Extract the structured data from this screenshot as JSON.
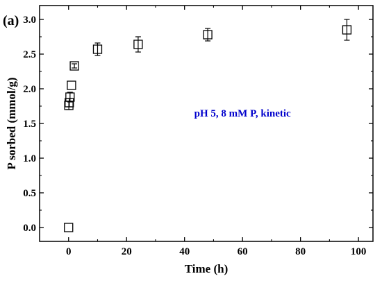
{
  "panel_label": "(a)",
  "chart_data": {
    "type": "scatter",
    "title": "",
    "xlabel": "Time (h)",
    "ylabel": "P sorbed (mmol/g)",
    "xlim": [
      -10,
      105
    ],
    "ylim": [
      -0.2,
      3.2
    ],
    "x_ticks": [
      0,
      20,
      40,
      60,
      80,
      100
    ],
    "y_ticks": [
      0.0,
      0.5,
      1.0,
      1.5,
      2.0,
      2.5,
      3.0
    ],
    "x_tick_labels": [
      "0",
      "20",
      "40",
      "60",
      "80",
      "100"
    ],
    "y_tick_labels": [
      "0.0",
      "0.5",
      "1.0",
      "1.5",
      "2.0",
      "2.5",
      "3.0"
    ],
    "grid": false,
    "legend": "none",
    "marker": "open-square",
    "series": [
      {
        "points": [
          {
            "x": 0,
            "y": 0.0,
            "err": 0.0
          },
          {
            "x": 0.083,
            "y": 1.76,
            "err": 0.06
          },
          {
            "x": 0.25,
            "y": 1.8,
            "err": 0.06
          },
          {
            "x": 0.5,
            "y": 1.88,
            "err": 0.07
          },
          {
            "x": 1,
            "y": 2.05,
            "err": 0.0
          },
          {
            "x": 2,
            "y": 2.33,
            "err": 0.03
          },
          {
            "x": 10,
            "y": 2.57,
            "err": 0.09
          },
          {
            "x": 24,
            "y": 2.64,
            "err": 0.11
          },
          {
            "x": 48,
            "y": 2.78,
            "err": 0.09
          },
          {
            "x": 96,
            "y": 2.85,
            "err": 0.15
          }
        ]
      }
    ],
    "annotation": {
      "text": "pH 5, 8 mM P, kinetic",
      "x": 60,
      "y": 1.65,
      "color": "#0000cc"
    }
  }
}
